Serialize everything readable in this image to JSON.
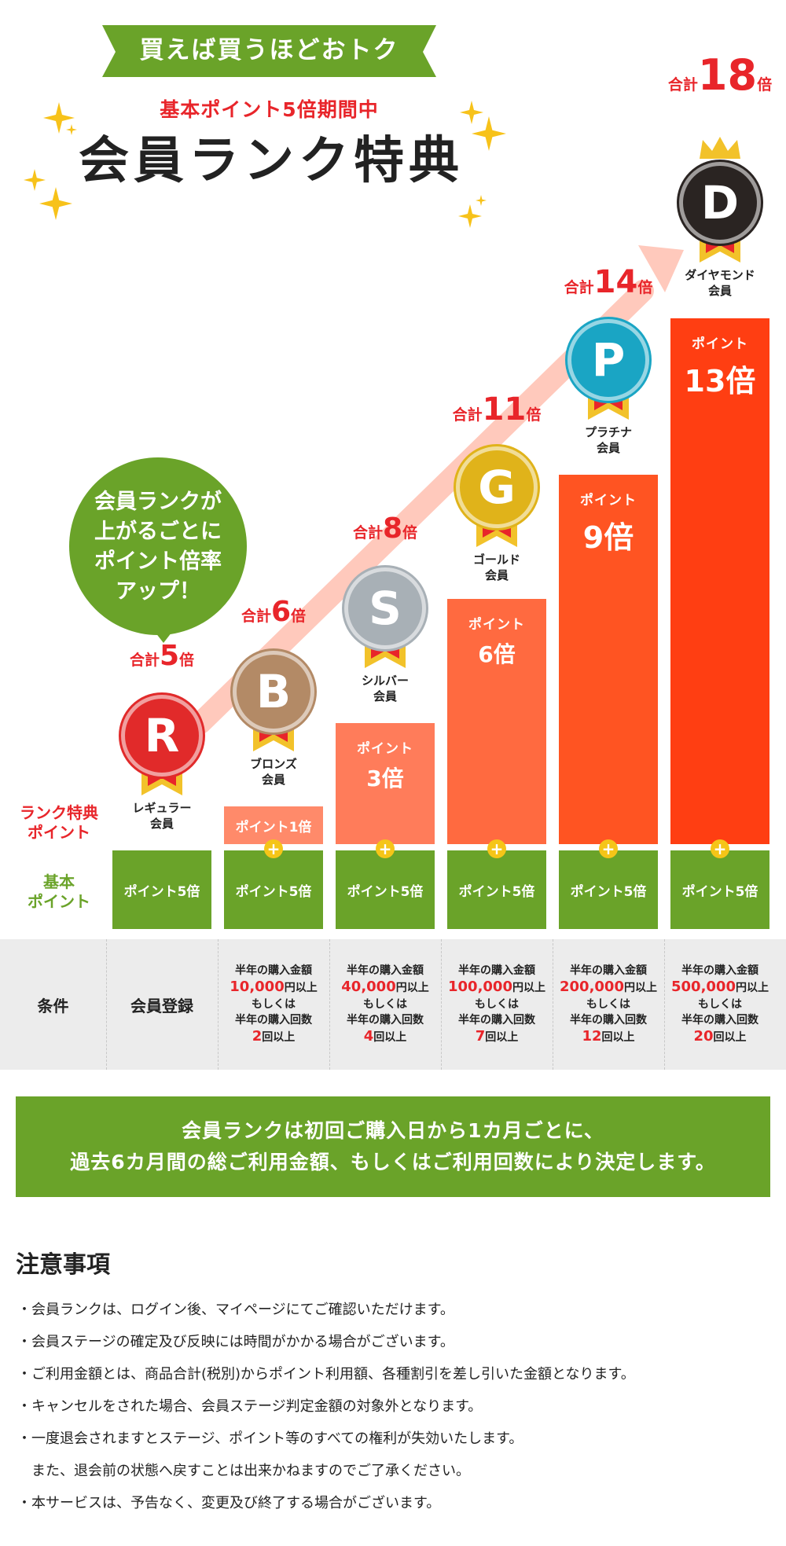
{
  "header": {
    "ribbon": "買えば買うほどおトク",
    "subtitle": "基本ポイント5倍期間中",
    "title": "会員ランク特典"
  },
  "bubble": {
    "line1": "会員ランクが",
    "line2": "上がるごとに",
    "line3": "ポイント倍率",
    "line4": "アップ！"
  },
  "labels": {
    "rank_point_1": "ランク特典",
    "rank_point_2": "ポイント",
    "base_point_1": "基本",
    "base_point_2": "ポイント",
    "base_box": "ポイント5倍",
    "plus": "+",
    "conditions": "条件",
    "total": "合計",
    "times": "倍"
  },
  "ranks": [
    {
      "letter": "R",
      "name1": "レギュラー",
      "name2": "会員",
      "total": "5",
      "bonus": "",
      "condition": "会員登録",
      "color": "#e12a2a"
    },
    {
      "letter": "B",
      "name1": "ブロンズ",
      "name2": "会員",
      "total": "6",
      "bonus": "ポイント1倍",
      "amount": "10,000",
      "count": "2",
      "color": "#b38a66"
    },
    {
      "letter": "S",
      "name1": "シルバー",
      "name2": "会員",
      "total": "8",
      "bonus_label": "ポイント",
      "bonus_value": "3倍",
      "amount": "40,000",
      "count": "4",
      "color": "#a8b0b6"
    },
    {
      "letter": "G",
      "name1": "ゴールド",
      "name2": "会員",
      "total": "11",
      "bonus_label": "ポイント",
      "bonus_value": "6倍",
      "amount": "100,000",
      "count": "7",
      "color": "#e0b31a"
    },
    {
      "letter": "P",
      "name1": "プラチナ",
      "name2": "会員",
      "total": "14",
      "bonus_label": "ポイント",
      "bonus_value": "9倍",
      "amount": "200,000",
      "count": "12",
      "color": "#1aa5c4"
    },
    {
      "letter": "D",
      "name1": "ダイヤモンド",
      "name2": "会員",
      "total": "18",
      "bonus_label": "ポイント",
      "bonus_value": "13倍",
      "amount": "500,000",
      "count": "20",
      "color": "#2a2422"
    }
  ],
  "condition_text": {
    "amount_label": "半年の購入金額",
    "amount_suffix": "円以上",
    "or": "もしくは",
    "count_label": "半年の購入回数",
    "count_suffix": "回以上"
  },
  "band": {
    "line1": "会員ランクは初回ご購入日から1カ月ごとに、",
    "line2": "過去6カ月間の総ご利用金額、もしくはご利用回数により決定します。"
  },
  "notes": {
    "title": "注意事項",
    "items": [
      "・会員ランクは、ログイン後、マイページにてご確認いただけます。",
      "・会員ステージの確定及び反映には時間がかかる場合がございます。",
      "・ご利用金額とは、商品合計(税別)からポイント利用額、各種割引を差し引いた金額となります。",
      "・キャンセルをされた場合、会員ステージ判定金額の対象外となります。",
      "・一度退会されますとステージ、ポイント等のすべての権利が失効いたします。",
      "　また、退会前の状態へ戻すことは出来かねますのでご了承ください。",
      "・本サービスは、予告なく、変更及び終了する場合がございます。"
    ]
  },
  "colors": {
    "green": "#6aa329",
    "red": "#e8252a",
    "bar_shades": [
      "#ff7c5a",
      "#ff6a40",
      "#ff5422",
      "#ff3e12"
    ]
  }
}
